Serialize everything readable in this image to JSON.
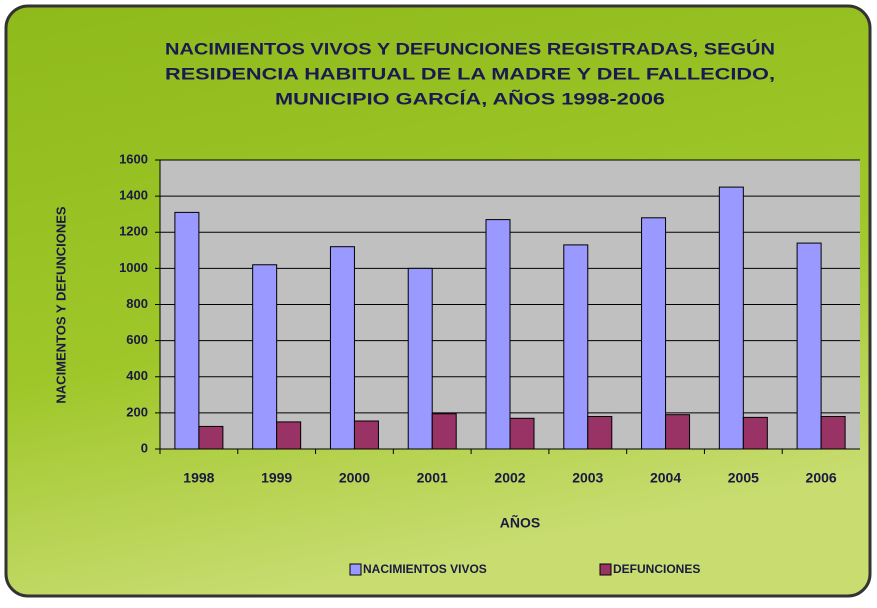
{
  "chart_data": {
    "type": "bar",
    "title": "NACIMIENTOS VIVOS Y DEFUNCIONES REGISTRADAS, SEGÚN RESIDENCIA HABITUAL DE LA MADRE Y DEL FALLECIDO, MUNICIPIO GARCÍA, AÑOS 1998-2006",
    "title_lines": [
      "NACIMIENTOS VIVOS Y DEFUNCIONES REGISTRADAS, SEGÚN",
      "RESIDENCIA HABITUAL DE LA MADRE Y DEL FALLECIDO,",
      "MUNICIPIO GARCÍA, AÑOS 1998-2006"
    ],
    "x_label": "AÑOS",
    "y_label": "NACIMENTOS Y DEFUNCIONES",
    "categories": [
      "1998",
      "1999",
      "2000",
      "2001",
      "2002",
      "2003",
      "2004",
      "2005",
      "2006"
    ],
    "series": [
      {
        "name": "NACIMIENTOS VIVOS",
        "color": "#9999ff",
        "values": [
          1310,
          1020,
          1120,
          1000,
          1270,
          1130,
          1280,
          1450,
          1140
        ]
      },
      {
        "name": "DEFUNCIONES",
        "color": "#993366",
        "values": [
          125,
          150,
          155,
          195,
          170,
          180,
          190,
          175,
          180
        ]
      }
    ],
    "ylim": [
      0,
      1600
    ],
    "yticks": [
      0,
      200,
      400,
      600,
      800,
      1000,
      1200,
      1400,
      1600
    ],
    "grid": true,
    "legend": "bottom"
  }
}
